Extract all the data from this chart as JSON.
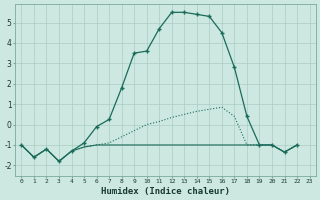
{
  "xlabel": "Humidex (Indice chaleur)",
  "bg_color": "#cce8e0",
  "grid_color": "#aaccC4",
  "line_color": "#1a6b5a",
  "xlim": [
    -0.5,
    23.5
  ],
  "ylim": [
    -2.5,
    5.9
  ],
  "xticks": [
    0,
    1,
    2,
    3,
    4,
    5,
    6,
    7,
    8,
    9,
    10,
    11,
    12,
    13,
    14,
    15,
    16,
    17,
    18,
    19,
    20,
    21,
    22,
    23
  ],
  "yticks": [
    -2,
    -1,
    0,
    1,
    2,
    3,
    4,
    5
  ],
  "series1_x": [
    0,
    1,
    2,
    3,
    4,
    5,
    6,
    7,
    8,
    9,
    10,
    11,
    12,
    13,
    14,
    15,
    16,
    17,
    18,
    19,
    20,
    21,
    22
  ],
  "series1_y": [
    -1.0,
    -1.6,
    -1.2,
    -1.8,
    -1.3,
    -0.9,
    -0.1,
    0.25,
    1.8,
    3.5,
    3.6,
    4.7,
    5.5,
    5.5,
    5.4,
    5.3,
    4.5,
    2.8,
    0.4,
    -1.0,
    -1.0,
    -1.35,
    -1.0
  ],
  "series2_x": [
    0,
    1,
    2,
    3,
    4,
    5,
    6,
    7,
    8,
    9,
    10,
    11,
    12,
    13,
    14,
    15,
    16,
    17,
    18,
    19,
    20,
    21,
    22
  ],
  "series2_y": [
    -1.0,
    -1.6,
    -1.2,
    -1.8,
    -1.3,
    -1.1,
    -1.0,
    -0.9,
    -0.6,
    -0.3,
    0.0,
    0.15,
    0.35,
    0.5,
    0.65,
    0.75,
    0.85,
    0.4,
    -1.0,
    -1.0,
    -1.0,
    -1.35,
    -1.0
  ],
  "series3_x": [
    0,
    1,
    2,
    3,
    4,
    5,
    6,
    7,
    8,
    9,
    10,
    11,
    12,
    13,
    14,
    15,
    16,
    17,
    18,
    19,
    20,
    21,
    22
  ],
  "series3_y": [
    -1.0,
    -1.6,
    -1.2,
    -1.8,
    -1.3,
    -1.1,
    -1.0,
    -1.0,
    -1.0,
    -1.0,
    -1.0,
    -1.0,
    -1.0,
    -1.0,
    -1.0,
    -1.0,
    -1.0,
    -1.0,
    -1.0,
    -1.0,
    -1.0,
    -1.35,
    -1.0
  ]
}
